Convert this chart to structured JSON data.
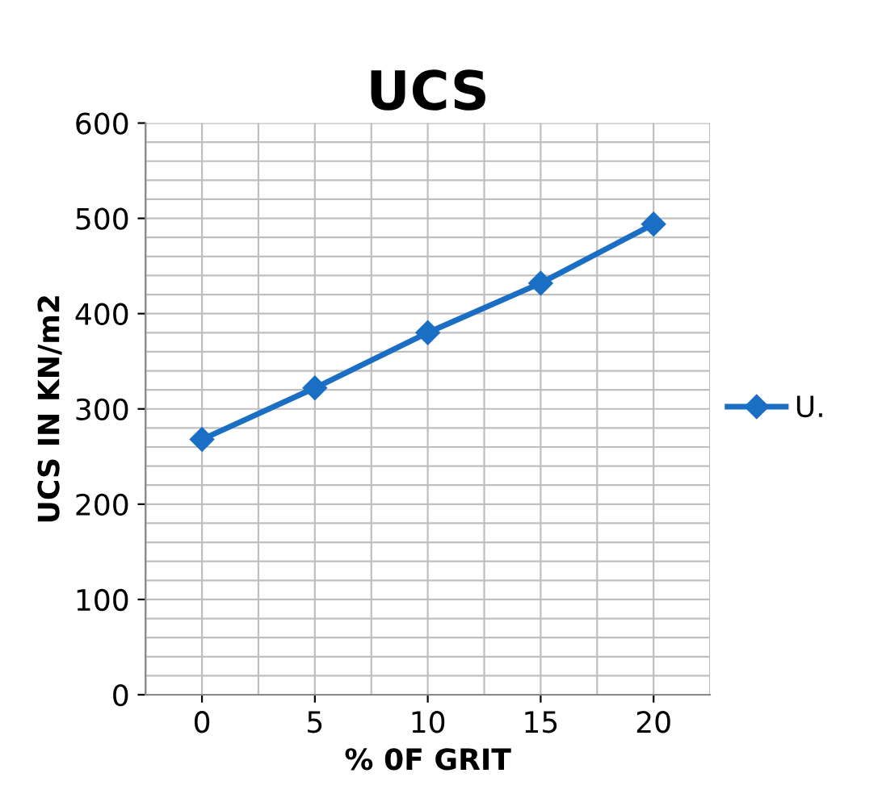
{
  "chart_data": {
    "type": "line",
    "title": "UCS",
    "xlabel": "% 0F GRIT",
    "ylabel": "UCS IN KN/m2",
    "categories": [
      "0",
      "5",
      "10",
      "15",
      "20"
    ],
    "series": [
      {
        "name": "U.",
        "color": "#1a6fc4",
        "values": [
          268,
          322,
          380,
          432,
          494
        ]
      }
    ],
    "ylim": [
      0,
      600
    ],
    "yticks": [
      0,
      100,
      200,
      300,
      400,
      500,
      600
    ],
    "grid": true,
    "legend": "right",
    "marker": "diamond",
    "line_style": "solid"
  }
}
